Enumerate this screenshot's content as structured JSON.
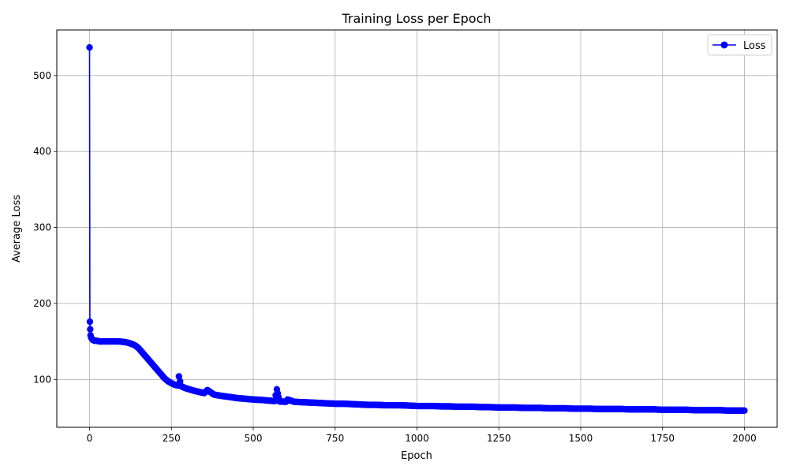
{
  "chart_data": {
    "type": "line",
    "title": "Training Loss per Epoch",
    "xlabel": "Epoch",
    "ylabel": "Average Loss",
    "xlim": [
      -100,
      2100
    ],
    "ylim": [
      37,
      560
    ],
    "xticks": [
      0,
      250,
      500,
      750,
      1000,
      1250,
      1500,
      1750,
      2000
    ],
    "yticks": [
      100,
      200,
      300,
      400,
      500
    ],
    "grid": true,
    "legend_position": "top-right",
    "series": [
      {
        "name": "Loss",
        "color": "#0000ff",
        "marker": "circle",
        "x": [
          0,
          1,
          2,
          3,
          5,
          8,
          10,
          15,
          20,
          30,
          40,
          50,
          60,
          70,
          80,
          90,
          100,
          110,
          120,
          130,
          140,
          150,
          160,
          170,
          180,
          190,
          200,
          210,
          220,
          230,
          240,
          250,
          260,
          270,
          273,
          280,
          290,
          300,
          320,
          340,
          350,
          360,
          380,
          400,
          425,
          450,
          475,
          500,
          525,
          550,
          565,
          572,
          580,
          600,
          605,
          625,
          650,
          675,
          700,
          725,
          750,
          775,
          800,
          825,
          850,
          875,
          900,
          925,
          950,
          975,
          1000,
          1025,
          1050,
          1075,
          1100,
          1125,
          1150,
          1175,
          1200,
          1225,
          1250,
          1275,
          1300,
          1325,
          1350,
          1375,
          1400,
          1425,
          1450,
          1475,
          1500,
          1525,
          1550,
          1575,
          1600,
          1625,
          1650,
          1675,
          1700,
          1725,
          1750,
          1775,
          1800,
          1825,
          1850,
          1875,
          1900,
          1925,
          1950,
          1975,
          2000
        ],
        "values": [
          537,
          176,
          166,
          158,
          155,
          153,
          152,
          151,
          151,
          150,
          150,
          150,
          150,
          150,
          150,
          150,
          149.5,
          149,
          148,
          146.5,
          144.5,
          141,
          136,
          131,
          126,
          121,
          116,
          111,
          106,
          101,
          97.5,
          95,
          93,
          92,
          104,
          91,
          89,
          87.5,
          85,
          83,
          82,
          86,
          80,
          78.5,
          77,
          75.5,
          74.5,
          73.5,
          73,
          72,
          71.5,
          87,
          71,
          70.5,
          73.5,
          70.5,
          70,
          69.5,
          69,
          68.5,
          68,
          68,
          67.5,
          67,
          66.5,
          66.5,
          66,
          66,
          66,
          65.5,
          65,
          65,
          65,
          64.5,
          64.5,
          64,
          64,
          64,
          63.5,
          63.5,
          63,
          63,
          63,
          62.5,
          62.5,
          62.5,
          62,
          62,
          62,
          61.5,
          61.5,
          61.5,
          61,
          61,
          61,
          61,
          60.5,
          60.5,
          60.5,
          60.5,
          60,
          60,
          60,
          60,
          59.5,
          59.5,
          59.5,
          59.5,
          59,
          59,
          59
        ]
      }
    ]
  }
}
